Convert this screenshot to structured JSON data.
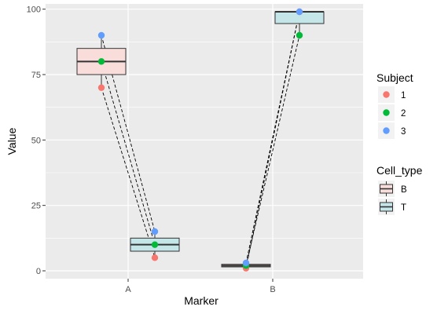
{
  "chart_data": {
    "type": "box",
    "categories": [
      "A",
      "B"
    ],
    "xlabel": "Marker",
    "ylabel": "Value",
    "ylim": [
      -3,
      102
    ],
    "yticks": [
      0,
      25,
      50,
      75,
      100
    ],
    "grid": true,
    "boxes": [
      {
        "marker": "A",
        "cell_type": "B",
        "min": 70,
        "q1": 75,
        "median": 80,
        "q3": 85,
        "max": 90
      },
      {
        "marker": "A",
        "cell_type": "T",
        "min": 5,
        "q1": 7.5,
        "median": 10,
        "q3": 12.5,
        "max": 15
      },
      {
        "marker": "B",
        "cell_type": "B",
        "min": 1,
        "q1": 1.5,
        "median": 2,
        "q3": 2.5,
        "max": 3
      },
      {
        "marker": "B",
        "cell_type": "T",
        "min": 90,
        "q1": 94.5,
        "median": 99,
        "q3": 99,
        "max": 99
      }
    ],
    "points": [
      {
        "subject": "1",
        "marker": "A",
        "cell_type": "B",
        "value": 70
      },
      {
        "subject": "2",
        "marker": "A",
        "cell_type": "B",
        "value": 80
      },
      {
        "subject": "3",
        "marker": "A",
        "cell_type": "B",
        "value": 90
      },
      {
        "subject": "1",
        "marker": "A",
        "cell_type": "T",
        "value": 5
      },
      {
        "subject": "2",
        "marker": "A",
        "cell_type": "T",
        "value": 10
      },
      {
        "subject": "3",
        "marker": "A",
        "cell_type": "T",
        "value": 15
      },
      {
        "subject": "1",
        "marker": "B",
        "cell_type": "B",
        "value": 1
      },
      {
        "subject": "2",
        "marker": "B",
        "cell_type": "B",
        "value": 2
      },
      {
        "subject": "3",
        "marker": "B",
        "cell_type": "B",
        "value": 3
      },
      {
        "subject": "1",
        "marker": "B",
        "cell_type": "T",
        "value": 99
      },
      {
        "subject": "2",
        "marker": "B",
        "cell_type": "T",
        "value": 90
      },
      {
        "subject": "3",
        "marker": "B",
        "cell_type": "T",
        "value": 99
      }
    ],
    "legends": [
      {
        "title": "Subject",
        "kind": "point",
        "items": [
          {
            "label": "1",
            "color": "#F8766D"
          },
          {
            "label": "2",
            "color": "#00BA38"
          },
          {
            "label": "3",
            "color": "#619CFF"
          }
        ]
      },
      {
        "title": "Cell_type",
        "kind": "box",
        "items": [
          {
            "label": "B",
            "color": "#F8DDDA"
          },
          {
            "label": "T",
            "color": "#C4E6E8"
          }
        ]
      }
    ],
    "legend_position": "right",
    "line_style": "dashed"
  }
}
